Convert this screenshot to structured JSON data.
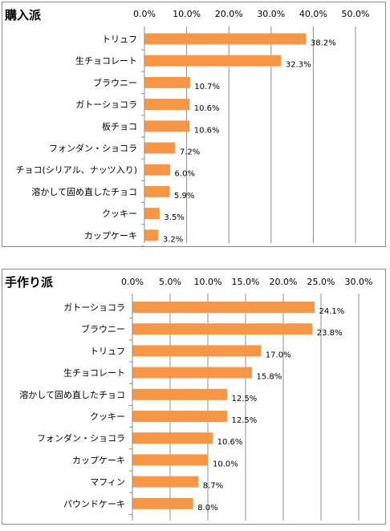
{
  "chart_data": [
    {
      "type": "bar",
      "orientation": "horizontal",
      "title": "購入派",
      "xlim": [
        0,
        50
      ],
      "xticks": [
        "0.0%",
        "10.0%",
        "20.0%",
        "30.0%",
        "40.0%",
        "50.0%"
      ],
      "categories": [
        "トリュフ",
        "生チョコレート",
        "ブラウニー",
        "ガトーショコラ",
        "板チョコ",
        "フォンダン・ショコラ",
        "チョコ(シリアル、ナッツ入り)",
        "溶かして固め直したチョコ",
        "クッキー",
        "カップケーキ"
      ],
      "values": [
        38.2,
        32.3,
        10.7,
        10.6,
        10.6,
        7.2,
        6.0,
        5.9,
        3.5,
        3.2
      ],
      "value_labels": [
        "38.2%",
        "32.3%",
        "10.7%",
        "10.6%",
        "10.6%",
        "7.2%",
        "6.0%",
        "5.9%",
        "3.5%",
        "3.2%"
      ],
      "bar_color": "#f79646",
      "grid": true
    },
    {
      "type": "bar",
      "orientation": "horizontal",
      "title": "手作り派",
      "xlim": [
        0,
        30
      ],
      "xticks": [
        "0.0%",
        "5.0%",
        "10.0%",
        "15.0%",
        "20.0%",
        "25.0%",
        "30.0%"
      ],
      "categories": [
        "ガトーショコラ",
        "ブラウニー",
        "トリュフ",
        "生チョコレート",
        "溶かして固め直したチョコ",
        "クッキー",
        "フォンダン・ショコラ",
        "カップケーキ",
        "マフィン",
        "パウンドケーキ"
      ],
      "values": [
        24.1,
        23.8,
        17.0,
        15.8,
        12.5,
        12.5,
        10.6,
        10.0,
        8.7,
        8.0
      ],
      "value_labels": [
        "24.1%",
        "23.8%",
        "17.0%",
        "15.8%",
        "12.5%",
        "12.5%",
        "10.6%",
        "10.0%",
        "8.7%",
        "8.0%"
      ],
      "bar_color": "#f79646",
      "grid": true
    }
  ]
}
